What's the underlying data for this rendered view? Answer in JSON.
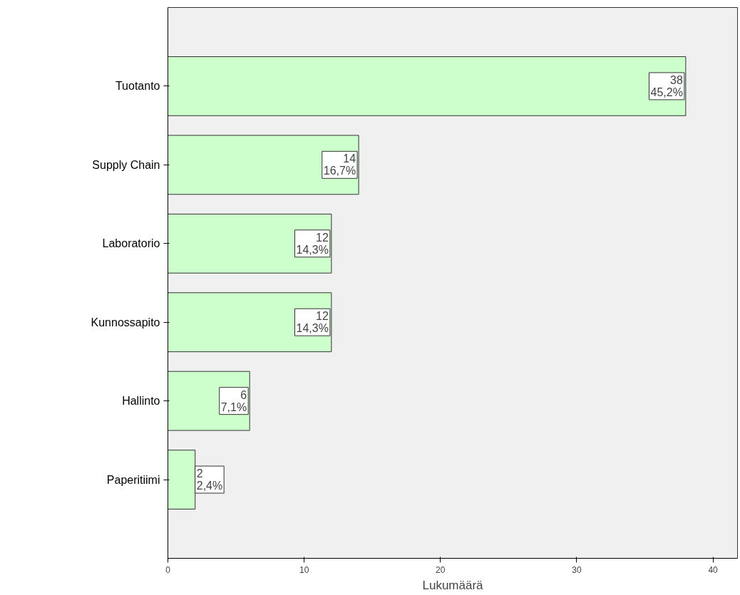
{
  "chart_data": {
    "type": "bar",
    "orientation": "horizontal",
    "xlabel": "Lukumäärä",
    "categories": [
      "Tuotanto",
      "Supply Chain",
      "Laboratorio",
      "Kunnossapito",
      "Hallinto",
      "Paperitiimi"
    ],
    "values": [
      38,
      14,
      12,
      12,
      6,
      2
    ],
    "value_labels": [
      "38\n45,2%",
      "14\n16,7%",
      "12\n14,3%",
      "12\n14,3%",
      "6\n7,1%",
      "2\n2,4%"
    ],
    "color": "#ccffcc",
    "xlim": [
      0,
      41.8
    ],
    "xticks": [
      0,
      10,
      20,
      30,
      40
    ],
    "grid": false
  }
}
